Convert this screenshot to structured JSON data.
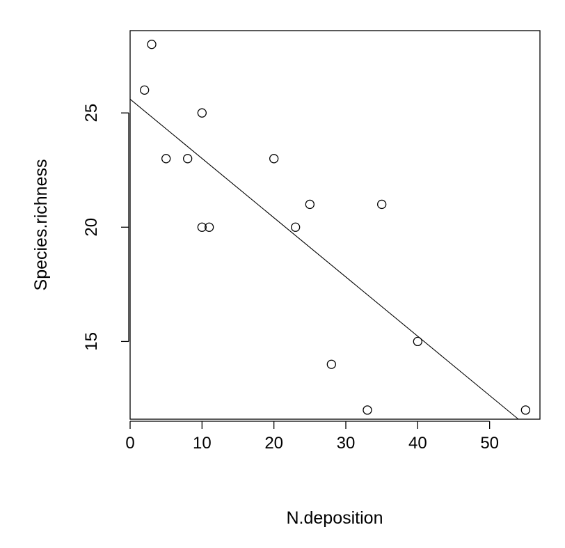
{
  "chart_data": {
    "type": "scatter",
    "title": "",
    "xlabel": "N.deposition",
    "ylabel": "Species.richness",
    "xlim": [
      0,
      57
    ],
    "ylim": [
      11.6,
      28.6
    ],
    "x_ticks": [
      0,
      10,
      20,
      30,
      40,
      50
    ],
    "y_ticks": [
      15,
      20,
      25
    ],
    "grid": false,
    "legend": "none",
    "points": [
      {
        "x": 2,
        "y": 26
      },
      {
        "x": 3,
        "y": 28
      },
      {
        "x": 5,
        "y": 23
      },
      {
        "x": 8,
        "y": 23
      },
      {
        "x": 10,
        "y": 25
      },
      {
        "x": 10,
        "y": 20
      },
      {
        "x": 11,
        "y": 20
      },
      {
        "x": 20,
        "y": 23
      },
      {
        "x": 23,
        "y": 20
      },
      {
        "x": 25,
        "y": 21
      },
      {
        "x": 28,
        "y": 14
      },
      {
        "x": 33,
        "y": 12
      },
      {
        "x": 35,
        "y": 21
      },
      {
        "x": 40,
        "y": 15
      },
      {
        "x": 55,
        "y": 12
      }
    ],
    "fit_line": {
      "x": [
        0,
        54
      ],
      "y": [
        25.6,
        11.6
      ]
    }
  }
}
